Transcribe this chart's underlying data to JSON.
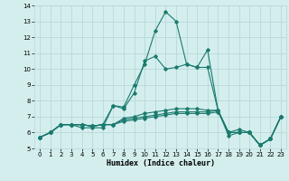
{
  "xlabel": "Humidex (Indice chaleur)",
  "x_values": [
    0,
    1,
    2,
    3,
    4,
    5,
    6,
    7,
    8,
    9,
    10,
    11,
    12,
    13,
    14,
    15,
    16,
    17,
    18,
    19,
    20,
    21,
    22,
    23
  ],
  "lines": [
    [
      5.7,
      6.0,
      6.5,
      6.5,
      6.3,
      6.3,
      6.3,
      7.7,
      7.6,
      9.0,
      10.3,
      12.4,
      13.6,
      13.0,
      10.3,
      10.1,
      11.2,
      7.4,
      5.8,
      6.0,
      6.0,
      5.2,
      5.6,
      7.0
    ],
    [
      5.7,
      6.0,
      6.5,
      6.5,
      6.5,
      6.4,
      6.5,
      7.7,
      7.5,
      8.5,
      10.5,
      10.8,
      10.0,
      10.1,
      10.3,
      10.1,
      10.1,
      7.4,
      6.0,
      6.2,
      6.0,
      5.2,
      5.6,
      7.0
    ],
    [
      5.7,
      6.0,
      6.5,
      6.5,
      6.5,
      6.4,
      6.5,
      6.5,
      6.9,
      7.0,
      7.2,
      7.3,
      7.4,
      7.5,
      7.5,
      7.5,
      7.4,
      7.4,
      6.0,
      6.0,
      6.0,
      5.2,
      5.6,
      7.0
    ],
    [
      5.7,
      6.0,
      6.5,
      6.5,
      6.5,
      6.4,
      6.5,
      6.5,
      6.8,
      6.9,
      7.0,
      7.1,
      7.2,
      7.3,
      7.3,
      7.3,
      7.3,
      7.4,
      6.0,
      6.0,
      6.0,
      5.2,
      5.6,
      7.0
    ],
    [
      5.7,
      6.0,
      6.5,
      6.5,
      6.5,
      6.4,
      6.5,
      6.5,
      6.7,
      6.8,
      6.9,
      7.0,
      7.1,
      7.2,
      7.2,
      7.2,
      7.2,
      7.3,
      6.0,
      6.0,
      6.0,
      5.2,
      5.6,
      7.0
    ]
  ],
  "line_color": "#1a7a6e",
  "bg_color": "#d4eeee",
  "grid_color": "#b8d8d8",
  "ylim": [
    5,
    14
  ],
  "yticks": [
    5,
    6,
    7,
    8,
    9,
    10,
    11,
    12,
    13,
    14
  ],
  "xticks": [
    0,
    1,
    2,
    3,
    4,
    5,
    6,
    7,
    8,
    9,
    10,
    11,
    12,
    13,
    14,
    15,
    16,
    17,
    18,
    19,
    20,
    21,
    22,
    23
  ],
  "marker": "D",
  "marker_size": 1.8,
  "linewidth": 0.8
}
